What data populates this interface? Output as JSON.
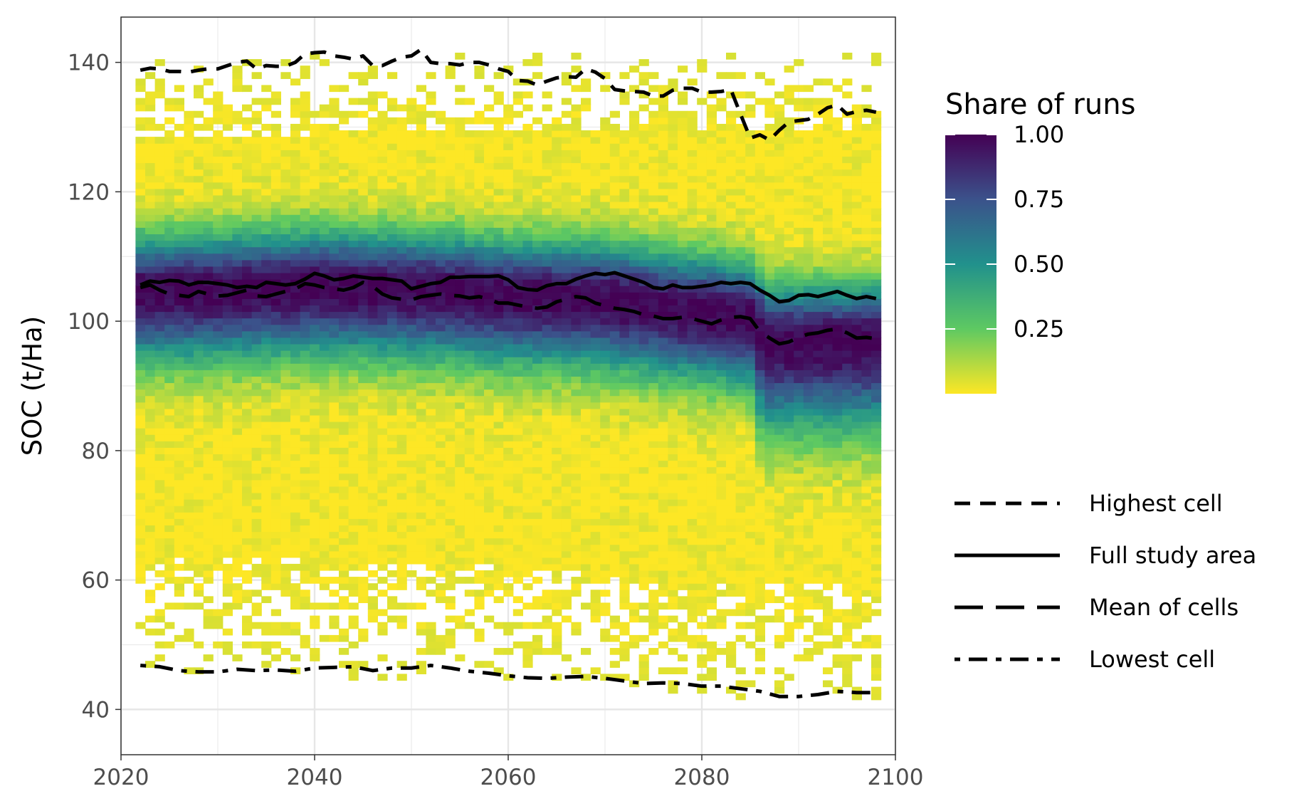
{
  "chart_data": {
    "type": "heatmap",
    "title": "",
    "xlabel": "",
    "ylabel": "SOC (t/Ha)",
    "xlim": [
      2020,
      2100
    ],
    "ylim": [
      33,
      147
    ],
    "x_ticks": [
      "2020",
      "2040",
      "2060",
      "2080",
      "2100"
    ],
    "y_ticks": [
      "40",
      "60",
      "80",
      "100",
      "120",
      "140"
    ],
    "grid": true,
    "heatmap": {
      "x_range": [
        2022,
        2098
      ],
      "value_label": "Share of runs",
      "core_envelope": [
        {
          "x": 2022,
          "low": 64,
          "high": 128
        },
        {
          "x": 2040,
          "low": 63,
          "high": 129
        },
        {
          "x": 2060,
          "low": 62,
          "high": 129
        },
        {
          "x": 2080,
          "low": 60,
          "high": 129
        },
        {
          "x": 2098,
          "low": 59,
          "high": 129
        }
      ],
      "density_center": [
        {
          "x": 2022,
          "y": 104.5
        },
        {
          "x": 2030,
          "y": 104.8
        },
        {
          "x": 2040,
          "y": 105.5
        },
        {
          "x": 2050,
          "y": 105.0
        },
        {
          "x": 2060,
          "y": 104.0
        },
        {
          "x": 2070,
          "y": 103.5
        },
        {
          "x": 2080,
          "y": 101.5
        },
        {
          "x": 2085,
          "y": 100.5
        },
        {
          "x": 2087,
          "y": 97.0
        },
        {
          "x": 2098,
          "y": 97.0
        }
      ]
    },
    "colorbar": {
      "title": "Share of runs",
      "ticks": [
        "1.00",
        "0.75",
        "0.50",
        "0.25"
      ],
      "colors": [
        "#fde725",
        "#5ec962",
        "#21918c",
        "#3b528b",
        "#440154"
      ]
    },
    "series": [
      {
        "name": "Highest cell",
        "dash": "dashed",
        "x": [
          2022,
          2023,
          2024,
          2025,
          2026,
          2027,
          2028,
          2029,
          2030,
          2031,
          2032,
          2033,
          2034,
          2035,
          2036,
          2037,
          2038,
          2039,
          2040,
          2041,
          2042,
          2043,
          2044,
          2045,
          2046,
          2047,
          2048,
          2049,
          2050,
          2051,
          2052,
          2053,
          2054,
          2055,
          2056,
          2057,
          2058,
          2059,
          2060,
          2061,
          2062,
          2063,
          2064,
          2065,
          2066,
          2067,
          2068,
          2069,
          2070,
          2071,
          2072,
          2073,
          2074,
          2075,
          2076,
          2077,
          2078,
          2079,
          2080,
          2081,
          2082,
          2083,
          2084,
          2085,
          2086,
          2087,
          2088,
          2089,
          2090,
          2091,
          2092,
          2093,
          2094,
          2095,
          2096,
          2097,
          2098
        ],
        "y": [
          138.8,
          139.1,
          139.0,
          138.6,
          138.6,
          138.5,
          138.8,
          139.0,
          139.0,
          139.5,
          140.0,
          140.2,
          139.0,
          139.5,
          139.4,
          139.4,
          140.0,
          141.3,
          141.5,
          141.6,
          141.0,
          140.8,
          140.5,
          141.0,
          139.5,
          139.5,
          140.2,
          140.8,
          141.0,
          142.0,
          140.0,
          139.8,
          139.8,
          139.6,
          140.0,
          140.0,
          139.6,
          139.0,
          138.6,
          137.2,
          137.1,
          136.5,
          137.1,
          137.6,
          137.8,
          137.7,
          139.0,
          138.5,
          137.5,
          135.8,
          135.6,
          135.5,
          135.4,
          134.8,
          134.8,
          135.7,
          136.0,
          136.0,
          135.4,
          135.4,
          135.5,
          135.8,
          132.0,
          128.3,
          128.8,
          128.0,
          129.5,
          130.8,
          131.0,
          131.2,
          132.0,
          133.0,
          133.4,
          132.0,
          132.4,
          132.6,
          132.3
        ]
      },
      {
        "name": "Full study area",
        "dash": "solid",
        "x": [
          2022,
          2023,
          2024,
          2025,
          2026,
          2027,
          2028,
          2029,
          2030,
          2031,
          2032,
          2033,
          2034,
          2035,
          2036,
          2037,
          2038,
          2039,
          2040,
          2041,
          2042,
          2043,
          2044,
          2045,
          2046,
          2047,
          2048,
          2049,
          2050,
          2051,
          2052,
          2053,
          2054,
          2055,
          2056,
          2057,
          2058,
          2059,
          2060,
          2061,
          2062,
          2063,
          2064,
          2065,
          2066,
          2067,
          2068,
          2069,
          2070,
          2071,
          2072,
          2073,
          2074,
          2075,
          2076,
          2077,
          2078,
          2079,
          2080,
          2081,
          2082,
          2083,
          2084,
          2085,
          2086,
          2087,
          2088,
          2089,
          2090,
          2091,
          2092,
          2093,
          2094,
          2095,
          2096,
          2097,
          2098
        ],
        "y": [
          105.6,
          106.2,
          106.0,
          106.3,
          106.2,
          105.6,
          106.0,
          106.0,
          105.8,
          105.6,
          105.2,
          105.4,
          105.2,
          106.0,
          105.8,
          105.6,
          105.8,
          106.5,
          107.4,
          107.0,
          106.4,
          106.6,
          107.0,
          106.8,
          106.6,
          106.6,
          106.4,
          106.2,
          105.0,
          105.4,
          105.8,
          106.0,
          106.8,
          106.8,
          106.9,
          106.9,
          106.9,
          107.0,
          106.4,
          105.2,
          104.9,
          104.8,
          105.5,
          105.8,
          105.8,
          106.5,
          107.0,
          107.4,
          107.2,
          107.5,
          107.0,
          106.5,
          106.0,
          105.2,
          105.0,
          105.6,
          105.2,
          105.2,
          105.4,
          105.6,
          106.0,
          105.8,
          106.0,
          105.8,
          104.8,
          104.0,
          103.0,
          103.2,
          104.0,
          104.1,
          103.8,
          104.2,
          104.6,
          104.0,
          103.5,
          103.8,
          103.5
        ]
      },
      {
        "name": "Mean of cells",
        "dash": "longdash",
        "x": [
          2022,
          2023,
          2024,
          2025,
          2026,
          2027,
          2028,
          2029,
          2030,
          2031,
          2032,
          2033,
          2034,
          2035,
          2036,
          2037,
          2038,
          2039,
          2040,
          2041,
          2042,
          2043,
          2044,
          2045,
          2046,
          2047,
          2048,
          2049,
          2050,
          2051,
          2052,
          2053,
          2054,
          2055,
          2056,
          2057,
          2058,
          2059,
          2060,
          2061,
          2062,
          2063,
          2064,
          2065,
          2066,
          2067,
          2068,
          2069,
          2070,
          2071,
          2072,
          2073,
          2074,
          2075,
          2076,
          2077,
          2078,
          2079,
          2080,
          2081,
          2082,
          2083,
          2084,
          2085,
          2086,
          2087,
          2088,
          2089,
          2090,
          2091,
          2092,
          2093,
          2094,
          2095,
          2096,
          2097,
          2098
        ],
        "y": [
          105.2,
          105.6,
          104.8,
          104.2,
          104.0,
          103.8,
          104.6,
          104.2,
          103.9,
          104.0,
          104.4,
          104.8,
          103.9,
          103.8,
          104.2,
          104.6,
          105.0,
          105.8,
          105.6,
          105.2,
          105.0,
          104.8,
          105.2,
          106.0,
          105.4,
          104.2,
          103.6,
          103.4,
          103.3,
          103.8,
          104.0,
          104.2,
          104.0,
          103.9,
          103.6,
          103.8,
          103.4,
          102.8,
          102.8,
          102.5,
          102.2,
          102.0,
          102.2,
          103.0,
          103.4,
          103.8,
          103.6,
          102.8,
          102.4,
          102.0,
          101.8,
          101.5,
          101.0,
          100.8,
          100.4,
          100.4,
          100.6,
          100.4,
          100.0,
          99.6,
          100.2,
          100.6,
          100.7,
          100.4,
          98.4,
          97.4,
          96.5,
          96.8,
          97.5,
          98.0,
          98.2,
          98.6,
          98.8,
          98.2,
          97.4,
          97.5,
          97.3
        ]
      },
      {
        "name": "Lowest cell",
        "dash": "dotdash",
        "x": [
          2022,
          2024,
          2026,
          2028,
          2030,
          2032,
          2034,
          2036,
          2038,
          2040,
          2042,
          2044,
          2046,
          2048,
          2050,
          2052,
          2054,
          2056,
          2058,
          2060,
          2062,
          2064,
          2066,
          2068,
          2070,
          2072,
          2074,
          2076,
          2078,
          2080,
          2082,
          2084,
          2086,
          2088,
          2090,
          2092,
          2094,
          2096,
          2098
        ],
        "y": [
          46.8,
          46.6,
          46.0,
          45.8,
          45.8,
          46.2,
          46.0,
          46.1,
          45.9,
          46.4,
          46.5,
          46.6,
          46.0,
          46.4,
          46.4,
          46.8,
          46.4,
          45.9,
          45.6,
          45.2,
          44.9,
          44.8,
          45.0,
          45.1,
          44.8,
          44.4,
          44.0,
          44.1,
          44.0,
          43.6,
          43.6,
          43.2,
          42.8,
          42.0,
          42.0,
          42.3,
          42.8,
          42.6,
          42.6
        ]
      }
    ],
    "legend": {
      "placement": "right",
      "entries": [
        "Highest cell",
        "Full study area",
        "Mean of cells",
        "Lowest cell"
      ]
    }
  }
}
